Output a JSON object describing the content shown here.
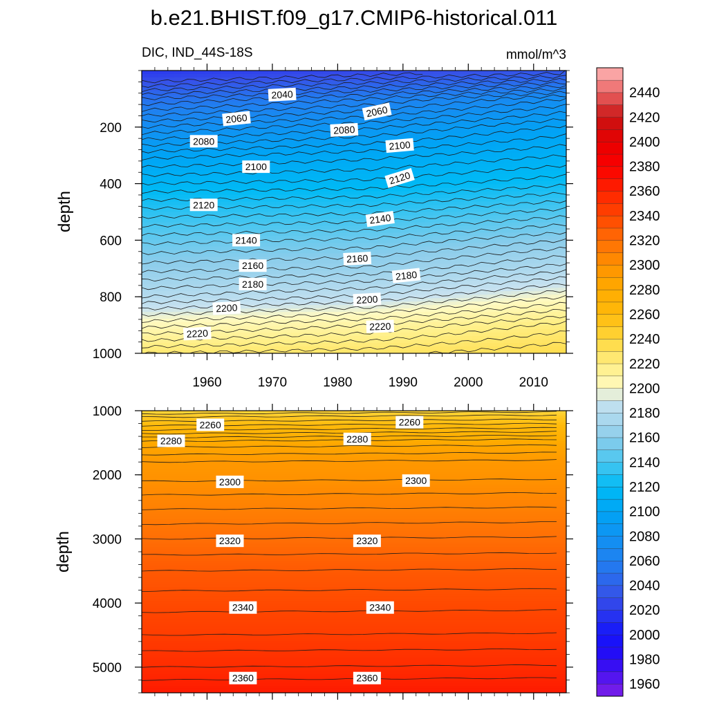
{
  "chart_data": {
    "type": "heatmap",
    "title": "b.e21.BHIST.f09_g17.CMIP6-historical.011",
    "variable_label": "DIC, IND_44S-18S",
    "units_label": "mmol/m^3",
    "colorbar": {
      "min": 1950,
      "max": 2460,
      "step": 10,
      "tick_labels": [
        "1960",
        "1980",
        "2000",
        "2020",
        "2040",
        "2060",
        "2080",
        "2100",
        "2120",
        "2140",
        "2160",
        "2180",
        "2200",
        "2220",
        "2240",
        "2260",
        "2280",
        "2300",
        "2320",
        "2340",
        "2360",
        "2380",
        "2400",
        "2420",
        "2440"
      ]
    },
    "panels": [
      {
        "name": "upper",
        "ylabel": "depth",
        "xlim": [
          1950,
          2015
        ],
        "ylim": [
          0,
          1000
        ],
        "x_ticks": [
          1960,
          1970,
          1980,
          1990,
          2000,
          2010
        ],
        "x_tick_labels": [
          "1960",
          "1970",
          "1980",
          "1990",
          "2000",
          "2010"
        ],
        "y_ticks": [
          200,
          400,
          600,
          800,
          1000
        ],
        "y_tick_labels": [
          "200",
          "400",
          "600",
          "800",
          "1000"
        ],
        "field_samples": [
          {
            "year": 1950,
            "depths": [
              10,
              100,
              200,
              300,
              400,
              500,
              600,
              700,
              800,
              900,
              1000
            ],
            "values": [
              2020,
              2050,
              2075,
              2098,
              2115,
              2132,
              2148,
              2163,
              2180,
              2203,
              2225
            ]
          },
          {
            "year": 1985,
            "depths": [
              10,
              100,
              200,
              300,
              400,
              500,
              600,
              700,
              800,
              900,
              1000
            ],
            "values": [
              2028,
              2060,
              2084,
              2103,
              2117,
              2134,
              2151,
              2166,
              2186,
              2210,
              2228
            ]
          },
          {
            "year": 2015,
            "depths": [
              10,
              100,
              200,
              300,
              400,
              500,
              600,
              700,
              800,
              900,
              1000
            ],
            "values": [
              2035,
              2075,
              2096,
              2110,
              2124,
              2142,
              2160,
              2178,
              2200,
              2222,
              2235
            ]
          }
        ],
        "contour_labels": [
          {
            "text": "2040",
            "year": 1971.5,
            "depth": 85,
            "angle": -3
          },
          {
            "text": "2060",
            "year": 1964.5,
            "depth": 170,
            "angle": -6
          },
          {
            "text": "2060",
            "year": 1986,
            "depth": 145,
            "angle": -12
          },
          {
            "text": "2080",
            "year": 1959.5,
            "depth": 250,
            "angle": 0
          },
          {
            "text": "2080",
            "year": 1981,
            "depth": 210,
            "angle": -3
          },
          {
            "text": "2100",
            "year": 1967.5,
            "depth": 340,
            "angle": 0
          },
          {
            "text": "2100",
            "year": 1989.5,
            "depth": 265,
            "angle": -5
          },
          {
            "text": "2120",
            "year": 1959.5,
            "depth": 475,
            "angle": 0
          },
          {
            "text": "2120",
            "year": 1989.5,
            "depth": 380,
            "angle": -17
          },
          {
            "text": "2140",
            "year": 1966,
            "depth": 600,
            "angle": 0
          },
          {
            "text": "2140",
            "year": 1986.5,
            "depth": 525,
            "angle": -8
          },
          {
            "text": "2160",
            "year": 1967,
            "depth": 690,
            "angle": 0
          },
          {
            "text": "2160",
            "year": 1983,
            "depth": 665,
            "angle": -3
          },
          {
            "text": "2180",
            "year": 1967,
            "depth": 755,
            "angle": 0
          },
          {
            "text": "2180",
            "year": 1990.5,
            "depth": 725,
            "angle": -6
          },
          {
            "text": "2200",
            "year": 1963,
            "depth": 840,
            "angle": -3
          },
          {
            "text": "2200",
            "year": 1984.5,
            "depth": 810,
            "angle": -3
          },
          {
            "text": "2220",
            "year": 1958.5,
            "depth": 930,
            "angle": -3
          },
          {
            "text": "2220",
            "year": 1986.5,
            "depth": 905,
            "angle": -2
          }
        ]
      },
      {
        "name": "lower",
        "ylabel": "depth",
        "xlim": [
          1950,
          2015
        ],
        "ylim": [
          1000,
          5400
        ],
        "x_ticks": [
          1960,
          1970,
          1980,
          1990,
          2000,
          2010
        ],
        "y_ticks": [
          1000,
          2000,
          3000,
          4000,
          5000
        ],
        "y_tick_labels": [
          "1000",
          "2000",
          "3000",
          "4000",
          "5000"
        ],
        "profile": {
          "depths": [
            1000,
            1100,
            1300,
            1500,
            1800,
            2100,
            2400,
            3000,
            3500,
            4000,
            4500,
            5000,
            5400
          ],
          "values": [
            2240,
            2250,
            2265,
            2282,
            2295,
            2300,
            2307,
            2320,
            2330,
            2338,
            2345,
            2355,
            2365
          ]
        },
        "contour_labels": [
          {
            "text": "2260",
            "year": 1960.5,
            "depth": 1220
          },
          {
            "text": "2260",
            "year": 1991,
            "depth": 1180
          },
          {
            "text": "2280",
            "year": 1954.5,
            "depth": 1470
          },
          {
            "text": "2280",
            "year": 1983,
            "depth": 1440
          },
          {
            "text": "2300",
            "year": 1963.5,
            "depth": 2110
          },
          {
            "text": "2300",
            "year": 1992,
            "depth": 2090
          },
          {
            "text": "2320",
            "year": 1963.5,
            "depth": 3030
          },
          {
            "text": "2320",
            "year": 1984.5,
            "depth": 3030
          },
          {
            "text": "2340",
            "year": 1965.5,
            "depth": 4070
          },
          {
            "text": "2340",
            "year": 1986.5,
            "depth": 4070
          },
          {
            "text": "2360",
            "year": 1965.5,
            "depth": 5170
          },
          {
            "text": "2360",
            "year": 1984.5,
            "depth": 5170
          }
        ]
      }
    ]
  }
}
